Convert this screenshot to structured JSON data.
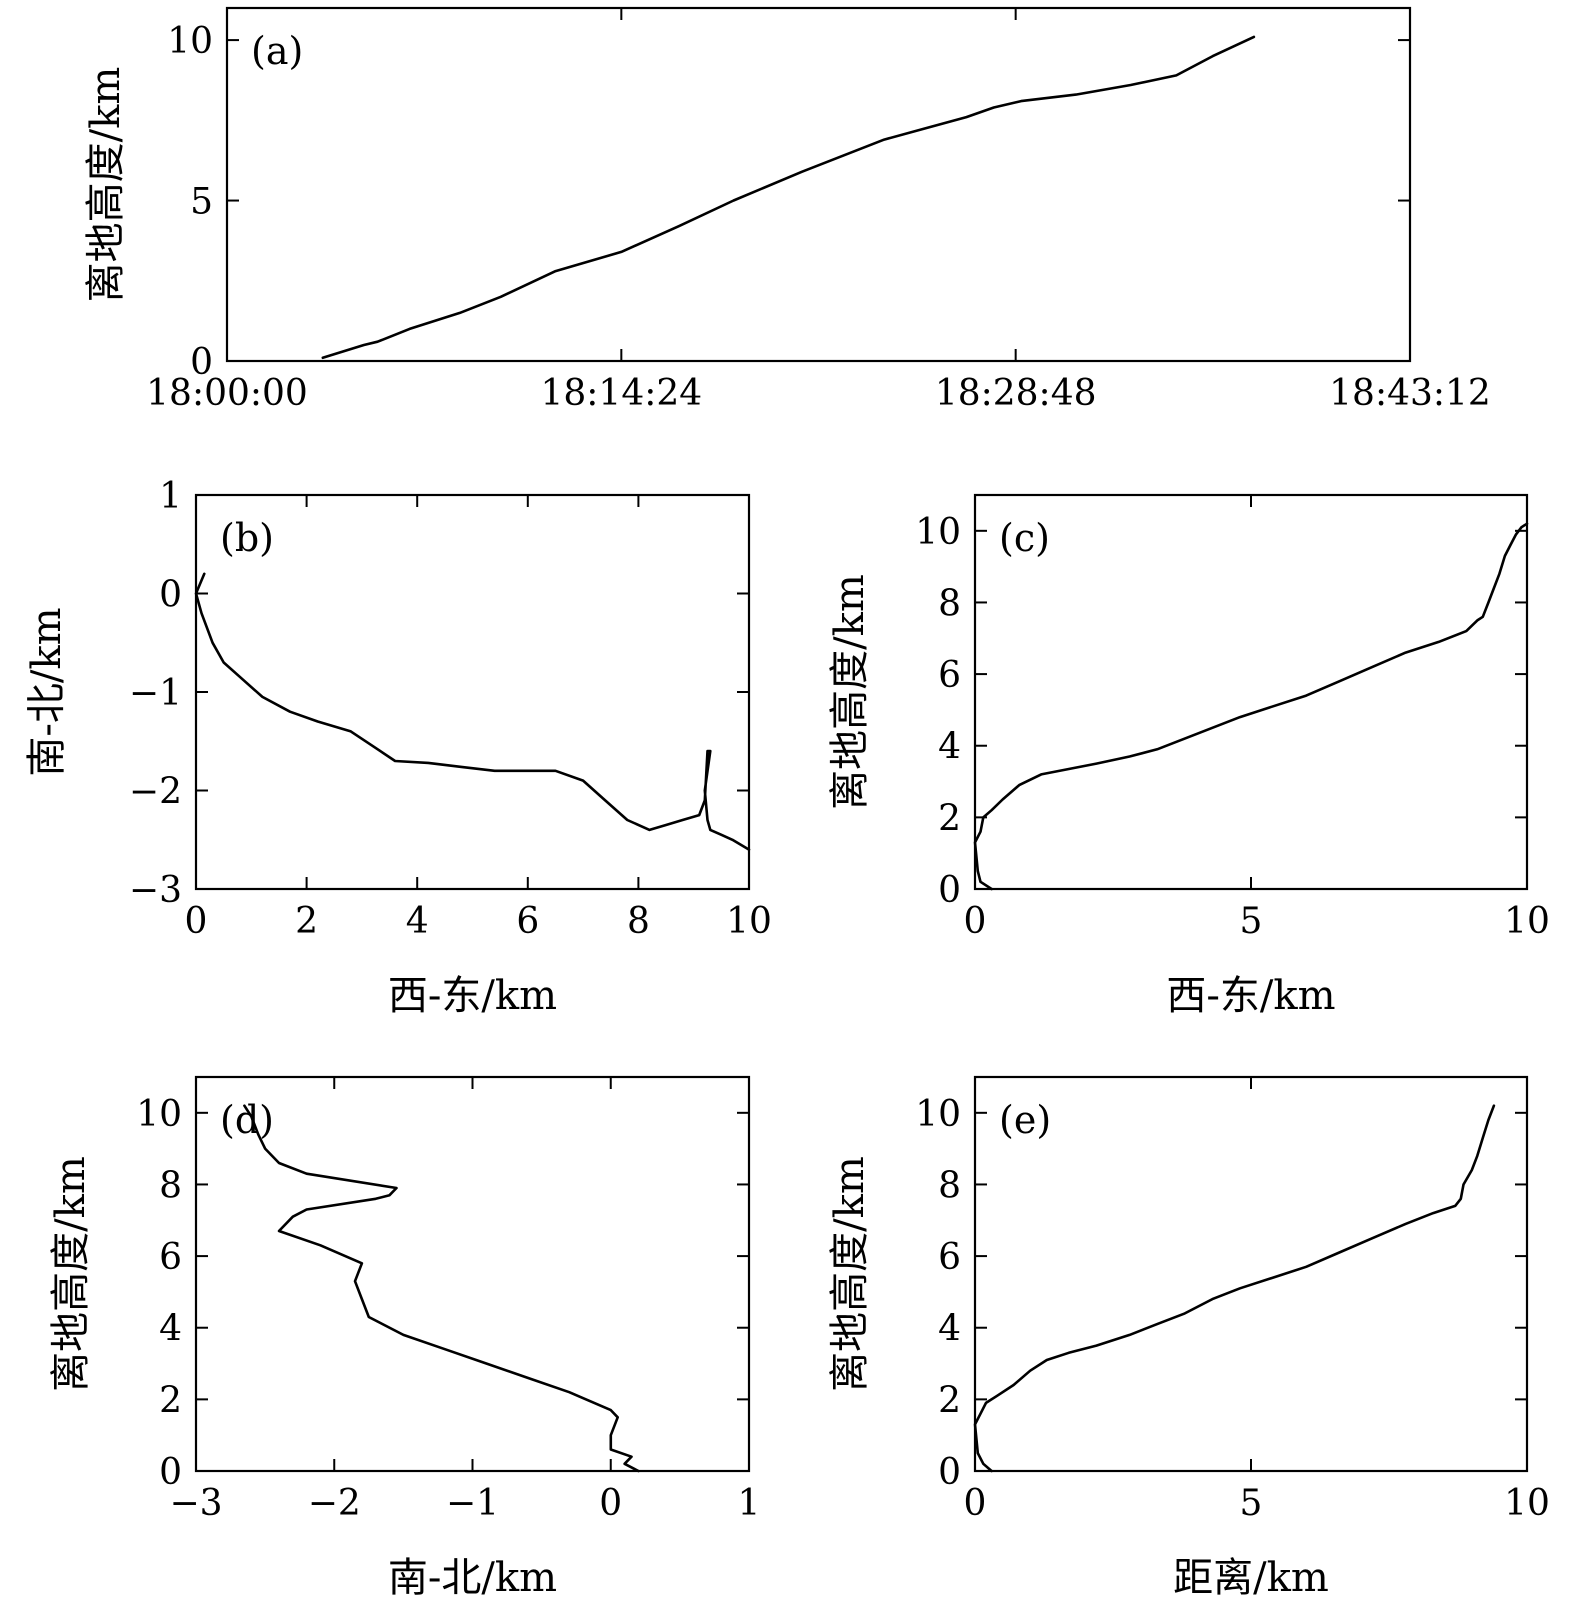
{
  "chart_data": [
    {
      "id": "a",
      "type": "line",
      "panel_label": "(a)",
      "xlabel": "",
      "ylabel": "离地高度/km",
      "xlim": [
        "18:00:00",
        "18:43:12"
      ],
      "ylim": [
        0,
        11
      ],
      "xticks": [
        "18:00:00",
        "18:14:24",
        "18:28:48",
        "18:43:12"
      ],
      "yticks": [
        "0",
        "5",
        "10"
      ],
      "series": [
        {
          "x": [
            "18:03:30",
            "18:05:00",
            "18:05:30",
            "18:06:40",
            "18:08:30",
            "18:10:00",
            "18:12:00",
            "18:14:24",
            "18:16:30",
            "18:18:30",
            "18:21:00",
            "18:24:00",
            "18:27:00",
            "18:28:00",
            "18:29:00",
            "18:31:00",
            "18:33:00",
            "18:34:40",
            "18:36:00",
            "18:37:30"
          ],
          "y": [
            0.1,
            0.5,
            0.6,
            1.0,
            1.5,
            2.0,
            2.8,
            3.4,
            4.2,
            5.0,
            5.9,
            6.9,
            7.6,
            7.9,
            8.1,
            8.3,
            8.6,
            8.9,
            9.5,
            10.1
          ]
        }
      ]
    },
    {
      "id": "b",
      "type": "line",
      "panel_label": "(b)",
      "xlabel": "西-东/km",
      "ylabel": "南-北/km",
      "xlim": [
        0,
        10
      ],
      "ylim": [
        -3,
        1
      ],
      "xticks": [
        "0",
        "2",
        "4",
        "6",
        "8",
        "10"
      ],
      "yticks": [
        "−3",
        "−2",
        "−1",
        "0",
        "1"
      ],
      "series": [
        {
          "x": [
            0.15,
            0.0,
            0.1,
            0.3,
            0.5,
            0.8,
            1.2,
            1.7,
            2.2,
            2.8,
            3.2,
            3.6,
            4.2,
            4.8,
            5.4,
            6.0,
            6.5,
            7.0,
            7.4,
            7.8,
            8.2,
            8.5,
            8.8,
            9.1,
            9.2,
            9.25,
            9.3,
            9.2,
            9.25,
            9.3,
            9.5,
            9.7,
            10.0
          ],
          "y": [
            0.2,
            0.0,
            -0.2,
            -0.5,
            -0.7,
            -0.85,
            -1.05,
            -1.2,
            -1.3,
            -1.4,
            -1.55,
            -1.7,
            -1.72,
            -1.76,
            -1.8,
            -1.8,
            -1.8,
            -1.9,
            -2.1,
            -2.3,
            -2.4,
            -2.35,
            -2.3,
            -2.25,
            -2.1,
            -1.6,
            -1.6,
            -2.0,
            -2.3,
            -2.4,
            -2.45,
            -2.5,
            -2.6
          ]
        }
      ]
    },
    {
      "id": "c",
      "type": "line",
      "panel_label": "(c)",
      "xlabel": "西-东/km",
      "ylabel": "离地高度/km",
      "xlim": [
        0,
        10
      ],
      "ylim": [
        0,
        11
      ],
      "xticks": [
        "0",
        "5",
        "10"
      ],
      "yticks": [
        "0",
        "2",
        "4",
        "6",
        "8",
        "10"
      ],
      "series": [
        {
          "x": [
            0.3,
            0.1,
            0.05,
            0.0,
            0.1,
            0.15,
            0.3,
            0.5,
            0.8,
            1.2,
            1.7,
            2.2,
            2.8,
            3.3,
            3.8,
            4.3,
            4.8,
            5.4,
            6.0,
            6.6,
            7.2,
            7.8,
            8.4,
            8.9,
            9.1,
            9.2,
            9.3,
            9.4,
            9.5,
            9.6,
            9.7,
            9.8,
            9.9,
            10.0
          ],
          "y": [
            0.0,
            0.2,
            0.5,
            1.3,
            1.6,
            2.0,
            2.2,
            2.5,
            2.9,
            3.2,
            3.35,
            3.5,
            3.7,
            3.9,
            4.2,
            4.5,
            4.8,
            5.1,
            5.4,
            5.8,
            6.2,
            6.6,
            6.9,
            7.2,
            7.5,
            7.6,
            8.0,
            8.4,
            8.8,
            9.3,
            9.6,
            9.9,
            10.1,
            10.2
          ]
        }
      ]
    },
    {
      "id": "d",
      "type": "line",
      "panel_label": "(d)",
      "xlabel": "南-北/km",
      "ylabel": "离地高度/km",
      "xlim": [
        -3,
        1
      ],
      "ylim": [
        0,
        11
      ],
      "xticks": [
        "−3",
        "−2",
        "−1",
        "0",
        "1"
      ],
      "yticks": [
        "0",
        "2",
        "4",
        "6",
        "8",
        "10"
      ],
      "series": [
        {
          "x": [
            0.2,
            0.1,
            0.15,
            0.0,
            0.0,
            0.05,
            0.0,
            -0.3,
            -0.6,
            -0.9,
            -1.2,
            -1.5,
            -1.75,
            -1.8,
            -1.85,
            -1.8,
            -2.1,
            -2.4,
            -2.3,
            -2.2,
            -1.7,
            -1.6,
            -1.55,
            -2.2,
            -2.4,
            -2.5,
            -2.55,
            -2.6,
            -2.65
          ],
          "y": [
            0.0,
            0.2,
            0.4,
            0.6,
            1.0,
            1.5,
            1.7,
            2.2,
            2.6,
            3.0,
            3.4,
            3.8,
            4.3,
            4.8,
            5.3,
            5.8,
            6.3,
            6.7,
            7.1,
            7.3,
            7.6,
            7.7,
            7.9,
            8.3,
            8.6,
            9.0,
            9.4,
            9.9,
            10.2
          ]
        }
      ]
    },
    {
      "id": "e",
      "type": "line",
      "panel_label": "(e)",
      "xlabel": "距离/km",
      "ylabel": "离地高度/km",
      "xlim": [
        0,
        10
      ],
      "ylim": [
        0,
        11
      ],
      "xticks": [
        "0",
        "5",
        "10"
      ],
      "yticks": [
        "0",
        "2",
        "4",
        "6",
        "8",
        "10"
      ],
      "series": [
        {
          "x": [
            0.3,
            0.15,
            0.05,
            0.0,
            0.1,
            0.2,
            0.4,
            0.7,
            1.0,
            1.3,
            1.7,
            2.2,
            2.8,
            3.3,
            3.8,
            4.3,
            4.8,
            5.4,
            6.0,
            6.6,
            7.2,
            7.8,
            8.3,
            8.7,
            8.8,
            8.85,
            9.0,
            9.1,
            9.2,
            9.3,
            9.4
          ],
          "y": [
            0.0,
            0.2,
            0.5,
            1.3,
            1.6,
            1.9,
            2.1,
            2.4,
            2.8,
            3.1,
            3.3,
            3.5,
            3.8,
            4.1,
            4.4,
            4.8,
            5.1,
            5.4,
            5.7,
            6.1,
            6.5,
            6.9,
            7.2,
            7.4,
            7.6,
            8.0,
            8.4,
            8.8,
            9.3,
            9.8,
            10.2
          ]
        }
      ]
    }
  ]
}
